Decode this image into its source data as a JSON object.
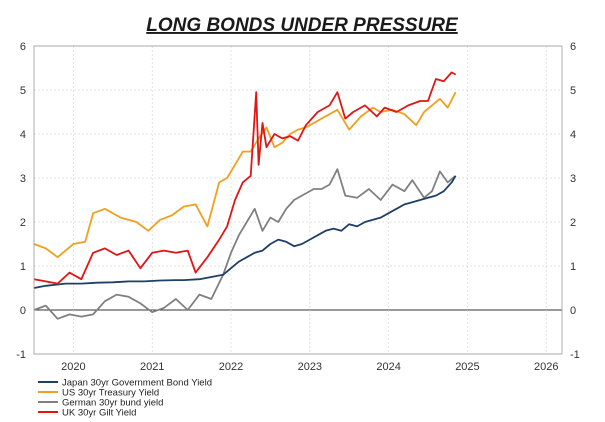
{
  "chart_data": {
    "type": "line",
    "title": "LONG BONDS UNDER PRESSURE",
    "xlabel": "",
    "ylabel": "",
    "xlim": [
      2019.6,
      2026.3
    ],
    "ylim": [
      -1,
      6
    ],
    "yticks": [
      -1,
      0,
      1,
      2,
      3,
      4,
      5,
      6
    ],
    "xtick_labels": [
      "2020",
      "2021",
      "2022",
      "2023",
      "2024",
      "2025",
      "2026"
    ],
    "xtick_positions": [
      2020.1,
      2021.1,
      2022.1,
      2023.1,
      2024.1,
      2025.1,
      2026.1
    ],
    "grid": true,
    "legend_position": "bottom-left",
    "series": [
      {
        "name": "Japan 30yr Government Bond Yield",
        "color": "#1f3f66",
        "x": [
          2019.6,
          2019.75,
          2019.9,
          2020.0,
          2020.2,
          2020.4,
          2020.6,
          2020.8,
          2021.0,
          2021.2,
          2021.4,
          2021.5,
          2021.7,
          2021.85,
          2022.0,
          2022.1,
          2022.2,
          2022.3,
          2022.4,
          2022.5,
          2022.6,
          2022.7,
          2022.8,
          2022.9,
          2023.0,
          2023.1,
          2023.2,
          2023.3,
          2023.4,
          2023.5,
          2023.6,
          2023.7,
          2023.8,
          2023.9,
          2024.0,
          2024.1,
          2024.2,
          2024.3,
          2024.4,
          2024.5,
          2024.6,
          2024.7,
          2024.8,
          2024.85,
          2024.9,
          2024.95
        ],
        "values": [
          0.5,
          0.55,
          0.58,
          0.6,
          0.6,
          0.62,
          0.63,
          0.65,
          0.65,
          0.67,
          0.68,
          0.68,
          0.7,
          0.75,
          0.8,
          0.95,
          1.1,
          1.2,
          1.3,
          1.35,
          1.5,
          1.6,
          1.55,
          1.45,
          1.5,
          1.6,
          1.7,
          1.8,
          1.85,
          1.8,
          1.95,
          1.9,
          2.0,
          2.05,
          2.1,
          2.2,
          2.3,
          2.4,
          2.45,
          2.5,
          2.55,
          2.6,
          2.7,
          2.8,
          2.9,
          3.05
        ]
      },
      {
        "name": "US 30yr Treasury Yield",
        "color": "#f0a020",
        "x": [
          2019.6,
          2019.75,
          2019.9,
          2020.0,
          2020.1,
          2020.25,
          2020.35,
          2020.5,
          2020.7,
          2020.9,
          2021.05,
          2021.2,
          2021.35,
          2021.5,
          2021.65,
          2021.8,
          2021.95,
          2022.05,
          2022.15,
          2022.25,
          2022.35,
          2022.45,
          2022.55,
          2022.65,
          2022.75,
          2022.85,
          2022.95,
          2023.05,
          2023.2,
          2023.35,
          2023.45,
          2023.6,
          2023.75,
          2023.9,
          2024.0,
          2024.15,
          2024.3,
          2024.45,
          2024.55,
          2024.65,
          2024.75,
          2024.85,
          2024.95
        ],
        "values": [
          1.5,
          1.4,
          1.2,
          1.35,
          1.5,
          1.55,
          2.2,
          2.3,
          2.1,
          2.0,
          1.8,
          2.05,
          2.15,
          2.35,
          2.4,
          1.9,
          2.9,
          3.0,
          3.3,
          3.6,
          3.6,
          3.9,
          4.15,
          3.7,
          3.8,
          4.0,
          4.1,
          4.15,
          4.3,
          4.45,
          4.55,
          4.1,
          4.4,
          4.6,
          4.5,
          4.55,
          4.45,
          4.2,
          4.5,
          4.65,
          4.8,
          4.6,
          4.95
        ]
      },
      {
        "name": "German 30yr bund yield",
        "color": "#808080",
        "x": [
          2019.6,
          2019.75,
          2019.9,
          2020.05,
          2020.2,
          2020.35,
          2020.5,
          2020.65,
          2020.8,
          2020.95,
          2021.1,
          2021.25,
          2021.4,
          2021.55,
          2021.7,
          2021.85,
          2022.0,
          2022.1,
          2022.2,
          2022.3,
          2022.4,
          2022.5,
          2022.6,
          2022.7,
          2022.8,
          2022.9,
          2023.0,
          2023.15,
          2023.25,
          2023.35,
          2023.45,
          2023.55,
          2023.7,
          2023.85,
          2024.0,
          2024.15,
          2024.3,
          2024.4,
          2024.55,
          2024.65,
          2024.75,
          2024.85,
          2024.95
        ],
        "values": [
          0.0,
          0.1,
          -0.2,
          -0.1,
          -0.15,
          -0.1,
          0.2,
          0.35,
          0.3,
          0.15,
          -0.05,
          0.05,
          0.25,
          0.0,
          0.35,
          0.25,
          0.8,
          1.3,
          1.7,
          2.0,
          2.3,
          1.8,
          2.1,
          2.0,
          2.3,
          2.5,
          2.6,
          2.75,
          2.75,
          2.85,
          3.2,
          2.6,
          2.55,
          2.75,
          2.5,
          2.85,
          2.7,
          2.95,
          2.55,
          2.7,
          3.15,
          2.9,
          3.05
        ]
      },
      {
        "name": "UK 30yr Gilt Yield",
        "color": "#e01515",
        "x": [
          2019.6,
          2019.75,
          2019.9,
          2020.05,
          2020.2,
          2020.35,
          2020.5,
          2020.65,
          2020.8,
          2020.95,
          2021.1,
          2021.25,
          2021.4,
          2021.55,
          2021.65,
          2021.8,
          2021.95,
          2022.05,
          2022.15,
          2022.25,
          2022.35,
          2022.42,
          2022.45,
          2022.5,
          2022.55,
          2022.65,
          2022.75,
          2022.85,
          2022.95,
          2023.05,
          2023.2,
          2023.35,
          2023.45,
          2023.55,
          2023.65,
          2023.8,
          2023.95,
          2024.05,
          2024.2,
          2024.35,
          2024.5,
          2024.6,
          2024.7,
          2024.8,
          2024.9,
          2024.95
        ],
        "values": [
          0.7,
          0.65,
          0.6,
          0.85,
          0.7,
          1.3,
          1.4,
          1.25,
          1.35,
          0.95,
          1.3,
          1.35,
          1.3,
          1.35,
          0.85,
          1.2,
          1.6,
          1.9,
          2.5,
          2.9,
          3.05,
          4.95,
          3.3,
          4.25,
          3.7,
          4.0,
          3.9,
          3.95,
          3.85,
          4.2,
          4.5,
          4.65,
          4.95,
          4.35,
          4.5,
          4.65,
          4.4,
          4.6,
          4.5,
          4.65,
          4.75,
          4.75,
          5.25,
          5.2,
          5.4,
          5.35
        ]
      }
    ]
  }
}
